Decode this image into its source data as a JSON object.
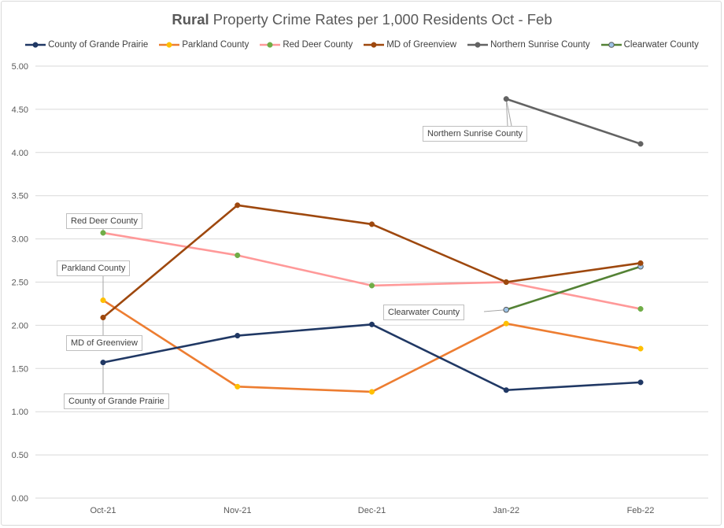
{
  "chart_data": {
    "type": "line",
    "title_bold": "Rural",
    "title_rest": " Property Crime Rates per 1,000 Residents Oct - Feb",
    "xlabel": "",
    "ylabel": "",
    "categories": [
      "Oct-21",
      "Nov-21",
      "Dec-21",
      "Jan-22",
      "Feb-22"
    ],
    "ylim": [
      0,
      5
    ],
    "yticks": [
      "0.00",
      "0.50",
      "1.00",
      "1.50",
      "2.00",
      "2.50",
      "3.00",
      "3.50",
      "4.00",
      "4.50",
      "5.00"
    ],
    "grid": true,
    "legend_position": "top",
    "series": [
      {
        "name": "County of Grande Prairie",
        "line": "#203864",
        "marker": "#203864",
        "values": [
          1.57,
          1.88,
          2.01,
          1.25,
          1.34
        ]
      },
      {
        "name": "Parkland County",
        "line": "#ED7D31",
        "marker": "#FFC000",
        "values": [
          2.29,
          1.29,
          1.23,
          2.02,
          1.73
        ]
      },
      {
        "name": "Red Deer County",
        "line": "#FF9999",
        "marker": "#70AD47",
        "values": [
          3.07,
          2.81,
          2.46,
          2.5,
          2.19
        ]
      },
      {
        "name": "MD of Greenview",
        "line": "#9E480E",
        "marker": "#9E480E",
        "values": [
          2.09,
          3.39,
          3.17,
          2.5,
          2.72
        ]
      },
      {
        "name": "Northern Sunrise County",
        "line": "#636363",
        "marker": "#636363",
        "values": [
          null,
          null,
          null,
          4.62,
          4.1
        ]
      },
      {
        "name": "Clearwater County",
        "line": "#548235",
        "marker": "#9DC3E6",
        "values": [
          null,
          null,
          null,
          2.18,
          2.68
        ]
      }
    ],
    "annotations": [
      {
        "text": "Red Deer County",
        "series": 2,
        "point": 0
      },
      {
        "text": "Parkland County",
        "series": 1,
        "point": 0
      },
      {
        "text": "MD of Greenview",
        "series": 3,
        "point": 0
      },
      {
        "text": "County of Grande Prairie",
        "series": 0,
        "point": 0
      },
      {
        "text": "Northern Sunrise County",
        "series": 4,
        "point": 3
      },
      {
        "text": "Clearwater County",
        "series": 5,
        "point": 3
      }
    ]
  }
}
